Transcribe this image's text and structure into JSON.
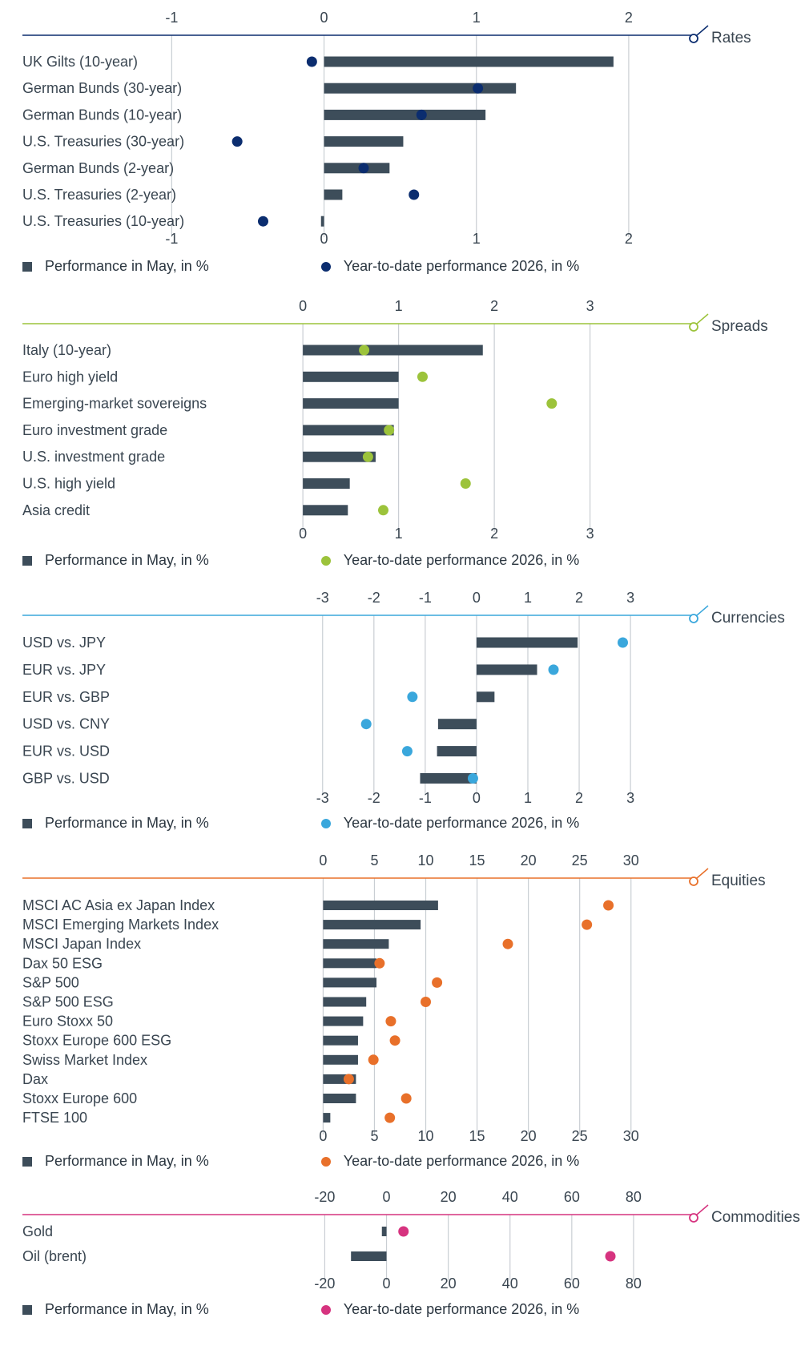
{
  "legend": {
    "bar_label": "Performance in May, in %",
    "dot_label": "Year-to-date performance 2026, in %"
  },
  "colors": {
    "bar": "#3d4d5a",
    "grid": "#c9ced3",
    "rates": "#0b2d6f",
    "spreads": "#9cc33b",
    "currencies": "#3aa7dc",
    "equities": "#e8702a",
    "commodities": "#d6337f"
  },
  "chart_data": [
    {
      "type": "bar",
      "title": "Rates",
      "ticks": [
        -1,
        0,
        1,
        2
      ],
      "tick_labels": [
        "-1",
        "0",
        "1",
        "2"
      ],
      "xlim": [
        -1.98,
        2.5
      ],
      "categories": [
        "UK Gilts (10-year)",
        "German Bunds (30-year)",
        "German Bunds (10-year)",
        "U.S. Treasuries (30-year)",
        "German Bunds (2-year)",
        "U.S. Treasuries (2-year)",
        "U.S. Treasuries (10-year)"
      ],
      "series": [
        {
          "name": "Performance in May, in %",
          "values": [
            1.9,
            1.26,
            1.06,
            0.52,
            0.43,
            0.12,
            -0.02
          ]
        },
        {
          "name": "Year-to-date performance 2026, in %",
          "values": [
            -0.08,
            1.01,
            0.64,
            -0.57,
            0.26,
            0.59,
            -0.4
          ]
        }
      ]
    },
    {
      "type": "bar",
      "title": "Spreads",
      "ticks": [
        0,
        1,
        2,
        3
      ],
      "tick_labels": [
        "0",
        "1",
        "2",
        "3"
      ],
      "xlim": [
        -2.93,
        4.2
      ],
      "categories": [
        "Italy (10-year)",
        "Euro high yield",
        "Emerging-market sovereigns",
        "Euro investment grade",
        "U.S. investment grade",
        "U.S. high yield",
        "Asia credit"
      ],
      "series": [
        {
          "name": "Performance in May, in %",
          "values": [
            1.88,
            1.0,
            1.0,
            0.95,
            0.76,
            0.49,
            0.47
          ]
        },
        {
          "name": "Year-to-date performance 2026, in %",
          "values": [
            0.64,
            1.25,
            2.6,
            0.9,
            0.68,
            1.7,
            0.84
          ]
        }
      ]
    },
    {
      "type": "bar",
      "title": "Currencies",
      "ticks": [
        -3,
        -2,
        -1,
        0,
        1,
        2,
        3
      ],
      "tick_labels": [
        "-3",
        "-2",
        "-1",
        "0",
        "1",
        "2",
        "3"
      ],
      "xlim": [
        -8.85,
        4.45
      ],
      "categories": [
        "USD vs. JPY",
        "EUR vs. JPY",
        "EUR vs. GBP",
        "USD vs. CNY",
        "EUR vs. USD",
        "GBP vs. USD"
      ],
      "series": [
        {
          "name": "Performance in May, in %",
          "values": [
            1.97,
            1.18,
            0.35,
            -0.75,
            -0.77,
            -1.1
          ]
        },
        {
          "name": "Year-to-date performance 2026, in %",
          "values": [
            2.85,
            1.5,
            -1.25,
            -2.15,
            -1.35,
            -0.07
          ]
        }
      ]
    },
    {
      "type": "bar",
      "title": "Equities",
      "ticks": [
        0,
        5,
        10,
        15,
        20,
        25,
        30
      ],
      "tick_labels": [
        "0",
        "5",
        "10",
        "15",
        "20",
        "25",
        "30"
      ],
      "xlim": [
        -29.3,
        37.2
      ],
      "categories": [
        "MSCI AC Asia ex Japan Index",
        "MSCI Emerging Markets Index",
        "MSCI Japan Index",
        "Dax 50 ESG",
        "S&P 500",
        "S&P 500 ESG",
        "Euro Stoxx 50",
        "Stoxx Europe 600 ESG",
        "Swiss Market Index",
        "Dax",
        "Stoxx Europe 600",
        "FTSE 100"
      ],
      "series": [
        {
          "name": "Performance in May, in %",
          "values": [
            11.2,
            9.5,
            6.4,
            5.2,
            5.2,
            4.2,
            3.9,
            3.4,
            3.4,
            3.2,
            3.2,
            0.7
          ]
        },
        {
          "name": "Year-to-date performance 2026, in %",
          "values": [
            27.8,
            25.7,
            18.0,
            5.5,
            11.1,
            10.0,
            6.6,
            7.0,
            4.9,
            2.5,
            8.1,
            6.5
          ]
        }
      ]
    },
    {
      "type": "bar",
      "title": "Commodities",
      "ticks": [
        -20,
        0,
        20,
        40,
        60,
        80
      ],
      "tick_labels": [
        "-20",
        "0",
        "20",
        "40",
        "60",
        "80"
      ],
      "xlim": [
        -117.9,
        103.1
      ],
      "categories": [
        "Gold",
        "Oil (brent)"
      ],
      "series": [
        {
          "name": "Performance in May, in %",
          "values": [
            -1.5,
            -11.5
          ]
        },
        {
          "name": "Year-to-date performance 2026, in %",
          "values": [
            5.5,
            72.5
          ]
        }
      ]
    }
  ]
}
